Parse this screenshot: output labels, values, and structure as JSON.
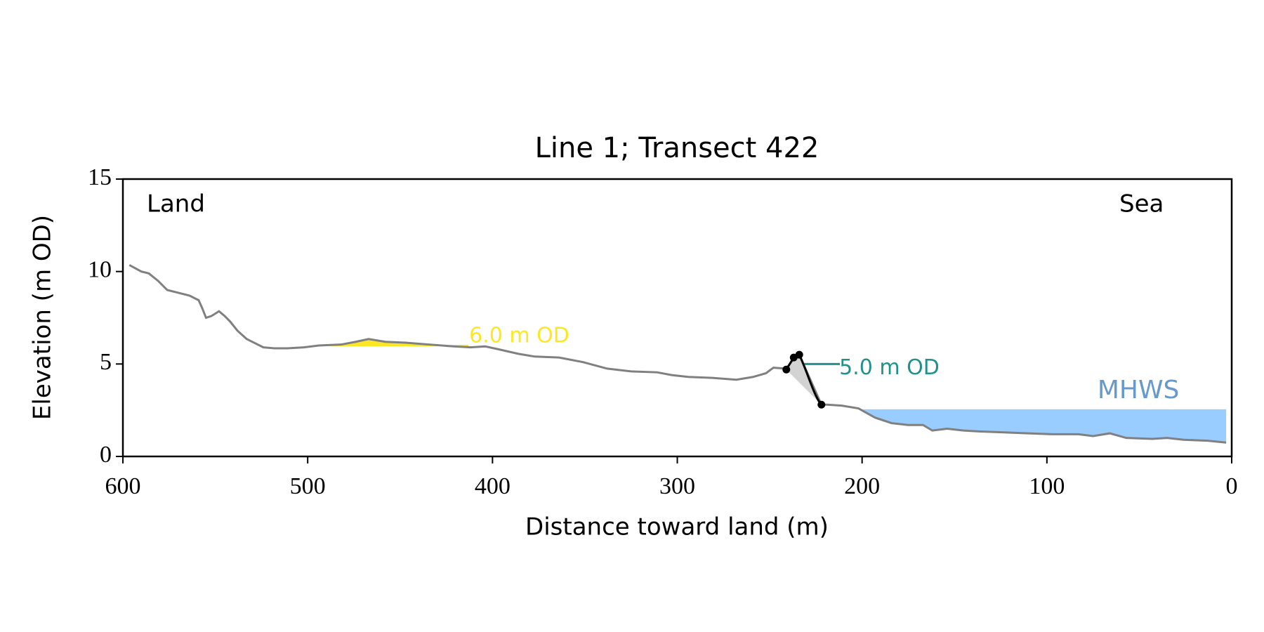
{
  "chart_data": {
    "type": "line",
    "title": "Line 1; Transect 422",
    "xlabel": "Distance toward land (m)",
    "ylabel": "Elevation (m OD)",
    "xlim": [
      600,
      0
    ],
    "ylim": [
      0,
      15
    ],
    "xticks": [
      600,
      500,
      400,
      300,
      200,
      100,
      0
    ],
    "yticks": [
      0,
      5,
      10,
      15
    ],
    "corner_labels": [
      "Land",
      "Sea"
    ],
    "profile": {
      "color": "#808080",
      "x": [
        596.5,
        590,
        586,
        581,
        576,
        570,
        564,
        559,
        557,
        555,
        552,
        548,
        545,
        542,
        538,
        533,
        524,
        518,
        511,
        502,
        494,
        482,
        474,
        467,
        458,
        447,
        434,
        421,
        412,
        404,
        397,
        386,
        377,
        364,
        351,
        338,
        325,
        311,
        303,
        294,
        281,
        268,
        259,
        252,
        248,
        241,
        237,
        234,
        222,
        219,
        211,
        202,
        193,
        184,
        175,
        167,
        162,
        154,
        145,
        136,
        123,
        110,
        97,
        83,
        75,
        66,
        57,
        43,
        35,
        26,
        13,
        3
      ],
      "values": [
        10.35,
        10.0,
        9.9,
        9.5,
        9.0,
        8.85,
        8.7,
        8.45,
        8.0,
        7.5,
        7.6,
        7.85,
        7.6,
        7.3,
        6.8,
        6.35,
        5.9,
        5.85,
        5.85,
        5.9,
        6.0,
        6.05,
        6.2,
        6.35,
        6.2,
        6.15,
        6.05,
        5.95,
        5.9,
        5.95,
        5.8,
        5.55,
        5.4,
        5.35,
        5.1,
        4.75,
        4.6,
        4.55,
        4.4,
        4.3,
        4.25,
        4.15,
        4.3,
        4.5,
        4.8,
        4.75,
        5.3,
        5.5,
        2.8,
        2.8,
        2.75,
        2.6,
        2.1,
        1.8,
        1.7,
        1.7,
        1.4,
        1.5,
        1.4,
        1.35,
        1.3,
        1.25,
        1.2,
        1.2,
        1.1,
        1.25,
        1.0,
        0.95,
        1.0,
        0.9,
        0.85,
        0.75
      ]
    },
    "cliff": {
      "color": "#000000",
      "x": [
        241,
        237,
        234,
        222
      ],
      "values": [
        4.7,
        5.35,
        5.5,
        2.8
      ]
    },
    "levels": [
      {
        "label": "6.0 m OD",
        "value": 6.0,
        "x_range": [
          495,
          413
        ],
        "color": "#fde725",
        "fill": "above"
      },
      {
        "label": "5.0 m OD",
        "value": 5.0,
        "x_range": [
          237,
          212
        ],
        "color": "#21918c",
        "fill": "none"
      },
      {
        "label": "MHWS",
        "value": 2.55,
        "x_range": [
          200,
          3
        ],
        "color": "#99ccff",
        "text_color": "#6699cc",
        "fill": "below"
      }
    ]
  }
}
